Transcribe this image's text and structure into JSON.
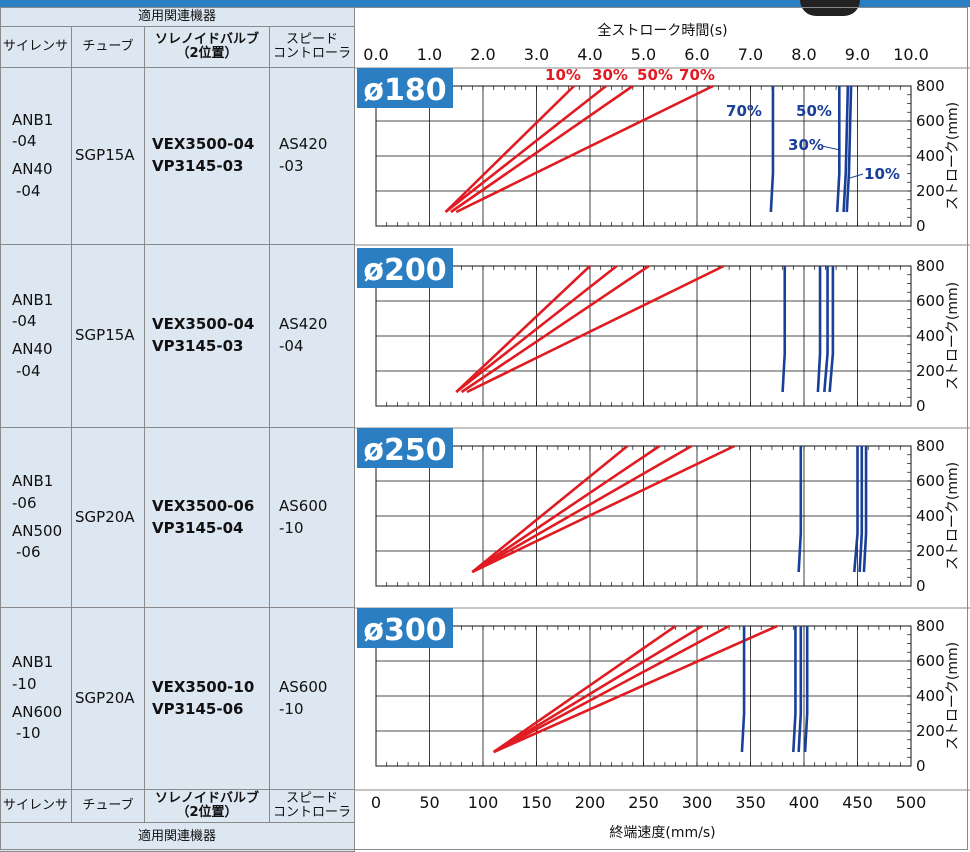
{
  "table": {
    "group_header": "適用関連機器",
    "columns": [
      "サイレンサ",
      "チューブ",
      "ソレノイドバルブ\n（2位置）",
      "スピード\nコントローラ"
    ],
    "rows": [
      {
        "silencer": [
          "ANB1",
          "-04",
          "AN40",
          "-04"
        ],
        "tube": "SGP15A",
        "valve": [
          "VEX3500-04",
          "VP3145-03"
        ],
        "speed_controller": [
          "AS420",
          "-03"
        ]
      },
      {
        "silencer": [
          "ANB1",
          "-04",
          "AN40",
          "-04"
        ],
        "tube": "SGP15A",
        "valve": [
          "VEX3500-04",
          "VP3145-03"
        ],
        "speed_controller": [
          "AS420",
          "-04"
        ]
      },
      {
        "silencer": [
          "ANB1",
          "-06",
          "AN500",
          "-06"
        ],
        "tube": "SGP20A",
        "valve": [
          "VEX3500-06",
          "VP3145-04"
        ],
        "speed_controller": [
          "AS600",
          "-10"
        ]
      },
      {
        "silencer": [
          "ANB1",
          "-10",
          "AN600",
          "-10"
        ],
        "tube": "SGP20A",
        "valve": [
          "VEX3500-10",
          "VP3145-06"
        ],
        "speed_controller": [
          "AS600",
          "-10"
        ]
      }
    ]
  },
  "colors": {
    "red": "#e01b22",
    "blue": "#1a3f99",
    "badge": "#2b7ec1",
    "table_bg": "#dce7f1"
  },
  "chart_data": {
    "type": "line",
    "top_axis": {
      "label": "全ストローク時間(s)",
      "ticks": [
        "0.0",
        "1.0",
        "2.0",
        "3.0",
        "4.0",
        "5.0",
        "6.0",
        "7.0",
        "8.0",
        "9.0",
        "10.0"
      ],
      "range": [
        0,
        10
      ]
    },
    "bottom_axis": {
      "label": "終端速度(mm/s)",
      "ticks": [
        "0",
        "50",
        "100",
        "150",
        "200",
        "250",
        "300",
        "350",
        "400",
        "450",
        "500"
      ],
      "range": [
        0,
        500
      ]
    },
    "right_axis": {
      "label": "ストローク(mm)",
      "ticks": [
        "0",
        "200",
        "400",
        "600",
        "800"
      ],
      "range": [
        0,
        800
      ]
    },
    "grid": true,
    "opening_labels": [
      "10%",
      "30%",
      "50%",
      "70%"
    ],
    "panels": [
      {
        "bore": "ø180",
        "time_series": [
          {
            "name": "10%",
            "points": [
              [
                1.3,
                80
              ],
              [
                3.7,
                800
              ]
            ]
          },
          {
            "name": "30%",
            "points": [
              [
                1.3,
                80
              ],
              [
                4.3,
                800
              ]
            ]
          },
          {
            "name": "50%",
            "points": [
              [
                1.4,
                80
              ],
              [
                4.8,
                800
              ]
            ]
          },
          {
            "name": "70%",
            "points": [
              [
                1.5,
                80
              ],
              [
                6.3,
                800
              ]
            ]
          }
        ],
        "velocity_series": [
          {
            "name": "10%",
            "points": [
              [
                440,
                80
              ],
              [
                442,
                300
              ],
              [
                444,
                800
              ]
            ]
          },
          {
            "name": "30%",
            "points": [
              [
                437,
                80
              ],
              [
                439,
                300
              ],
              [
                441,
                800
              ]
            ]
          },
          {
            "name": "50%",
            "points": [
              [
                431,
                80
              ],
              [
                433,
                300
              ],
              [
                433,
                800
              ]
            ]
          },
          {
            "name": "70%",
            "points": [
              [
                369,
                80
              ],
              [
                371,
                300
              ],
              [
                371,
                800
              ]
            ]
          }
        ]
      },
      {
        "bore": "ø200",
        "time_series": [
          {
            "name": "10%",
            "points": [
              [
                1.5,
                80
              ],
              [
                4.0,
                800
              ]
            ]
          },
          {
            "name": "30%",
            "points": [
              [
                1.5,
                80
              ],
              [
                4.5,
                800
              ]
            ]
          },
          {
            "name": "50%",
            "points": [
              [
                1.6,
                80
              ],
              [
                5.1,
                800
              ]
            ]
          },
          {
            "name": "70%",
            "points": [
              [
                1.7,
                80
              ],
              [
                6.5,
                800
              ]
            ]
          }
        ],
        "velocity_series": [
          {
            "name": "10%",
            "points": [
              [
                424,
                80
              ],
              [
                427,
                300
              ],
              [
                427,
                800
              ]
            ]
          },
          {
            "name": "30%",
            "points": [
              [
                419,
                80
              ],
              [
                422,
                300
              ],
              [
                422,
                800
              ]
            ]
          },
          {
            "name": "50%",
            "points": [
              [
                413,
                80
              ],
              [
                415,
                300
              ],
              [
                415,
                800
              ]
            ]
          },
          {
            "name": "70%",
            "points": [
              [
                380,
                80
              ],
              [
                382,
                300
              ],
              [
                382,
                800
              ]
            ]
          }
        ]
      },
      {
        "bore": "ø250",
        "time_series": [
          {
            "name": "10%",
            "points": [
              [
                1.8,
                80
              ],
              [
                4.7,
                800
              ]
            ]
          },
          {
            "name": "30%",
            "points": [
              [
                1.8,
                80
              ],
              [
                5.3,
                800
              ]
            ]
          },
          {
            "name": "50%",
            "points": [
              [
                1.8,
                80
              ],
              [
                5.9,
                800
              ]
            ]
          },
          {
            "name": "70%",
            "points": [
              [
                1.8,
                80
              ],
              [
                6.7,
                800
              ]
            ]
          }
        ],
        "velocity_series": [
          {
            "name": "10%",
            "points": [
              [
                456,
                80
              ],
              [
                458,
                300
              ],
              [
                458,
                800
              ]
            ]
          },
          {
            "name": "30%",
            "points": [
              [
                452,
                80
              ],
              [
                454,
                300
              ],
              [
                454,
                800
              ]
            ]
          },
          {
            "name": "50%",
            "points": [
              [
                447,
                80
              ],
              [
                450,
                300
              ],
              [
                450,
                800
              ]
            ]
          },
          {
            "name": "70%",
            "points": [
              [
                395,
                80
              ],
              [
                397,
                300
              ],
              [
                397,
                800
              ]
            ]
          }
        ]
      },
      {
        "bore": "ø300",
        "time_series": [
          {
            "name": "10%",
            "points": [
              [
                2.2,
                80
              ],
              [
                5.6,
                800
              ]
            ]
          },
          {
            "name": "30%",
            "points": [
              [
                2.2,
                80
              ],
              [
                6.1,
                800
              ]
            ]
          },
          {
            "name": "50%",
            "points": [
              [
                2.2,
                80
              ],
              [
                6.6,
                800
              ]
            ]
          },
          {
            "name": "70%",
            "points": [
              [
                2.2,
                80
              ],
              [
                7.5,
                800
              ]
            ]
          }
        ],
        "velocity_series": [
          {
            "name": "10%",
            "points": [
              [
                401,
                80
              ],
              [
                403,
                300
              ],
              [
                403,
                800
              ]
            ]
          },
          {
            "name": "30%",
            "points": [
              [
                395,
                80
              ],
              [
                397,
                300
              ],
              [
                397,
                800
              ]
            ]
          },
          {
            "name": "50%",
            "points": [
              [
                390,
                80
              ],
              [
                392,
                300
              ],
              [
                392,
                800
              ]
            ]
          },
          {
            "name": "70%",
            "points": [
              [
                342,
                80
              ],
              [
                344,
                300
              ],
              [
                344,
                800
              ]
            ]
          }
        ]
      }
    ]
  }
}
